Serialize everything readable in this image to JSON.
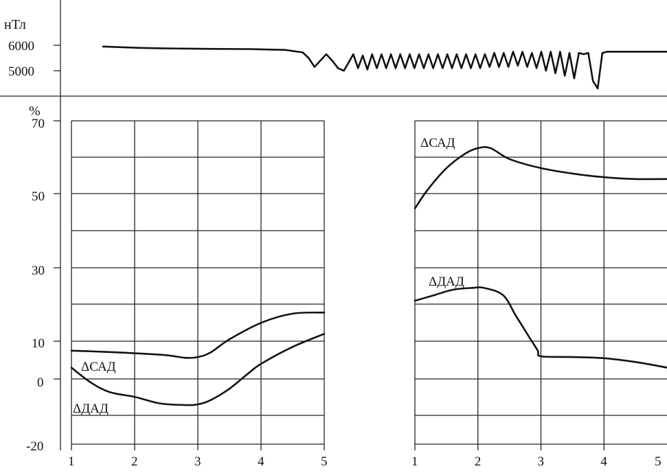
{
  "chart_data": [
    {
      "id": "field",
      "type": "line",
      "ylabel": "нТл",
      "y_ticks": [
        6000,
        5000
      ],
      "ylim": [
        4200,
        6500
      ],
      "note": "magnetic field trace: flat, then oscillating",
      "series": [
        {
          "name": "",
          "x": [
            0.3,
            0.6,
            0.8,
            1.0,
            1.2,
            1.55,
            1.85,
            2.0,
            2.05,
            2.1,
            2.15,
            2.2,
            2.25,
            2.3,
            2.35,
            2.4,
            2.43,
            2.47,
            2.51,
            2.55,
            2.59,
            2.63,
            2.67,
            2.71,
            2.75,
            2.79,
            2.83,
            2.87,
            2.91,
            2.95,
            2.99,
            3.03,
            3.07,
            3.11,
            3.15,
            3.19,
            3.23,
            3.27,
            3.31,
            3.35,
            3.39,
            3.43,
            3.47,
            3.51,
            3.55,
            3.59,
            3.63,
            3.67,
            3.71,
            3.75,
            3.79,
            3.83,
            3.87,
            3.91,
            3.95,
            3.99,
            4.03,
            4.07,
            4.11,
            4.15,
            4.19,
            4.23,
            4.27,
            4.31,
            4.35,
            4.39,
            4.43,
            4.47,
            4.51,
            4.55,
            4.59,
            4.63,
            4.67,
            4.71,
            4.75,
            4.79,
            4.83,
            4.87,
            4.91,
            4.95,
            5.0,
            5.1
          ],
          "values": [
            5950,
            5900,
            5880,
            5870,
            5860,
            5850,
            5820,
            5720,
            5500,
            5150,
            5400,
            5650,
            5400,
            5100,
            5000,
            5400,
            5650,
            5100,
            5600,
            5050,
            5650,
            5100,
            5650,
            5100,
            5650,
            5100,
            5650,
            5100,
            5650,
            5100,
            5650,
            5100,
            5650,
            5100,
            5650,
            5100,
            5650,
            5100,
            5650,
            5100,
            5650,
            5100,
            5650,
            5100,
            5650,
            5150,
            5700,
            5150,
            5700,
            5150,
            5750,
            5200,
            5750,
            5150,
            5700,
            5100,
            5750,
            5000,
            5750,
            4900,
            5750,
            4800,
            5700,
            4700,
            5700,
            5650,
            5700,
            4600,
            4300,
            5700,
            5750,
            5750,
            5750,
            5750,
            5750,
            5750,
            5750,
            5750,
            5750,
            5750,
            5750,
            5750
          ]
        }
      ]
    },
    {
      "id": "left",
      "type": "line",
      "ylabel": "%",
      "y_ticks": [
        70,
        50,
        30,
        10,
        0,
        -20
      ],
      "x_ticks": [
        1,
        2,
        3,
        4,
        5
      ],
      "xlim": [
        1,
        5
      ],
      "series": [
        {
          "name": "ΔСАД",
          "x": [
            1,
            1.5,
            2,
            2.5,
            2.8,
            3.0,
            3.2,
            3.5,
            4.0,
            4.5,
            5.0
          ],
          "values": [
            7.5,
            7.2,
            6.8,
            6.3,
            5.6,
            5.8,
            7.0,
            10.5,
            15.0,
            17.5,
            17.8
          ]
        },
        {
          "name": "ΔДАД",
          "x": [
            1,
            1.3,
            1.6,
            2,
            2.4,
            2.8,
            3.0,
            3.2,
            3.5,
            3.8,
            4.0,
            4.5,
            5.0
          ],
          "values": [
            3,
            -1,
            -4,
            -5.5,
            -7.5,
            -8.0,
            -7.8,
            -6.5,
            -3,
            1.5,
            4.0,
            8.5,
            12.0
          ]
        }
      ]
    },
    {
      "id": "right",
      "type": "line",
      "x_ticks": [
        1,
        2,
        3,
        4,
        5
      ],
      "xlim": [
        1,
        5
      ],
      "series": [
        {
          "name": "ΔСАД",
          "x": [
            1,
            1.2,
            1.5,
            1.8,
            2.0,
            2.2,
            2.5,
            3.0,
            3.5,
            4.0,
            4.5,
            5.0
          ],
          "values": [
            46,
            51,
            57,
            61,
            62.5,
            62.5,
            59.5,
            57,
            55.5,
            54.5,
            54,
            54
          ]
        },
        {
          "name": "ΔДАД",
          "x": [
            1,
            1.3,
            1.6,
            1.9,
            2.1,
            2.4,
            2.6,
            2.8,
            2.95,
            3.0,
            3.5,
            4.0,
            4.5,
            5.0
          ],
          "values": [
            21,
            22.5,
            24,
            24.5,
            24.5,
            22.5,
            17,
            11.5,
            7.5,
            6,
            5.8,
            5.5,
            4.5,
            3
          ]
        }
      ]
    }
  ]
}
